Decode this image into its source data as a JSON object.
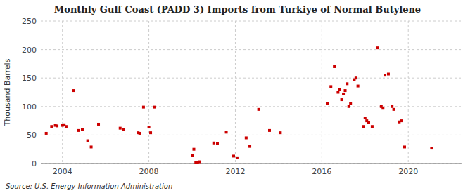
{
  "chart_data": {
    "type": "scatter",
    "title": "Monthly Gulf Coast (PADD 3) Imports from Turkiye of Normal Butylene",
    "y_label": "Thousand Barrels",
    "annotations": [
      "Source: U.S. Energy Information Administration"
    ],
    "color": "#cc0000",
    "marker": "square",
    "grid": true,
    "ylim": [
      0,
      250
    ],
    "yticks": [
      0,
      50,
      100,
      150,
      200,
      250
    ],
    "xlim": [
      2003.0,
      2022.5
    ],
    "xticks": [
      2004,
      2008,
      2012,
      2016,
      2020
    ],
    "x": [
      2003.25,
      2003.5,
      2003.67,
      2003.75,
      2004.0,
      2004.08,
      2004.17,
      2004.5,
      2004.75,
      2004.92,
      2005.17,
      2005.33,
      2005.67,
      2006.67,
      2006.83,
      2007.5,
      2007.58,
      2007.75,
      2008.0,
      2008.08,
      2008.25,
      2010.0,
      2010.08,
      2010.17,
      2010.25,
      2010.33,
      2011.0,
      2011.17,
      2011.58,
      2011.92,
      2012.08,
      2012.5,
      2012.67,
      2013.08,
      2013.58,
      2014.08,
      2016.25,
      2016.42,
      2016.58,
      2016.75,
      2016.83,
      2016.92,
      2017.0,
      2017.08,
      2017.17,
      2017.25,
      2017.33,
      2017.5,
      2017.58,
      2017.67,
      2017.92,
      2018.0,
      2018.08,
      2018.17,
      2018.33,
      2018.58,
      2018.75,
      2018.83,
      2018.92,
      2019.08,
      2019.25,
      2019.33,
      2019.58,
      2019.67,
      2019.83,
      2021.08
    ],
    "values": [
      53,
      65,
      67,
      66,
      67,
      68,
      65,
      128,
      58,
      60,
      40,
      29,
      69,
      62,
      60,
      54,
      53,
      99,
      64,
      54,
      99,
      14,
      25,
      2,
      2,
      3,
      36,
      35,
      55,
      13,
      10,
      45,
      30,
      95,
      58,
      54,
      105,
      135,
      170,
      125,
      130,
      112,
      122,
      128,
      140,
      100,
      105,
      147,
      150,
      136,
      65,
      80,
      75,
      72,
      65,
      203,
      100,
      97,
      155,
      157,
      100,
      95,
      73,
      75,
      29,
      27
    ]
  }
}
